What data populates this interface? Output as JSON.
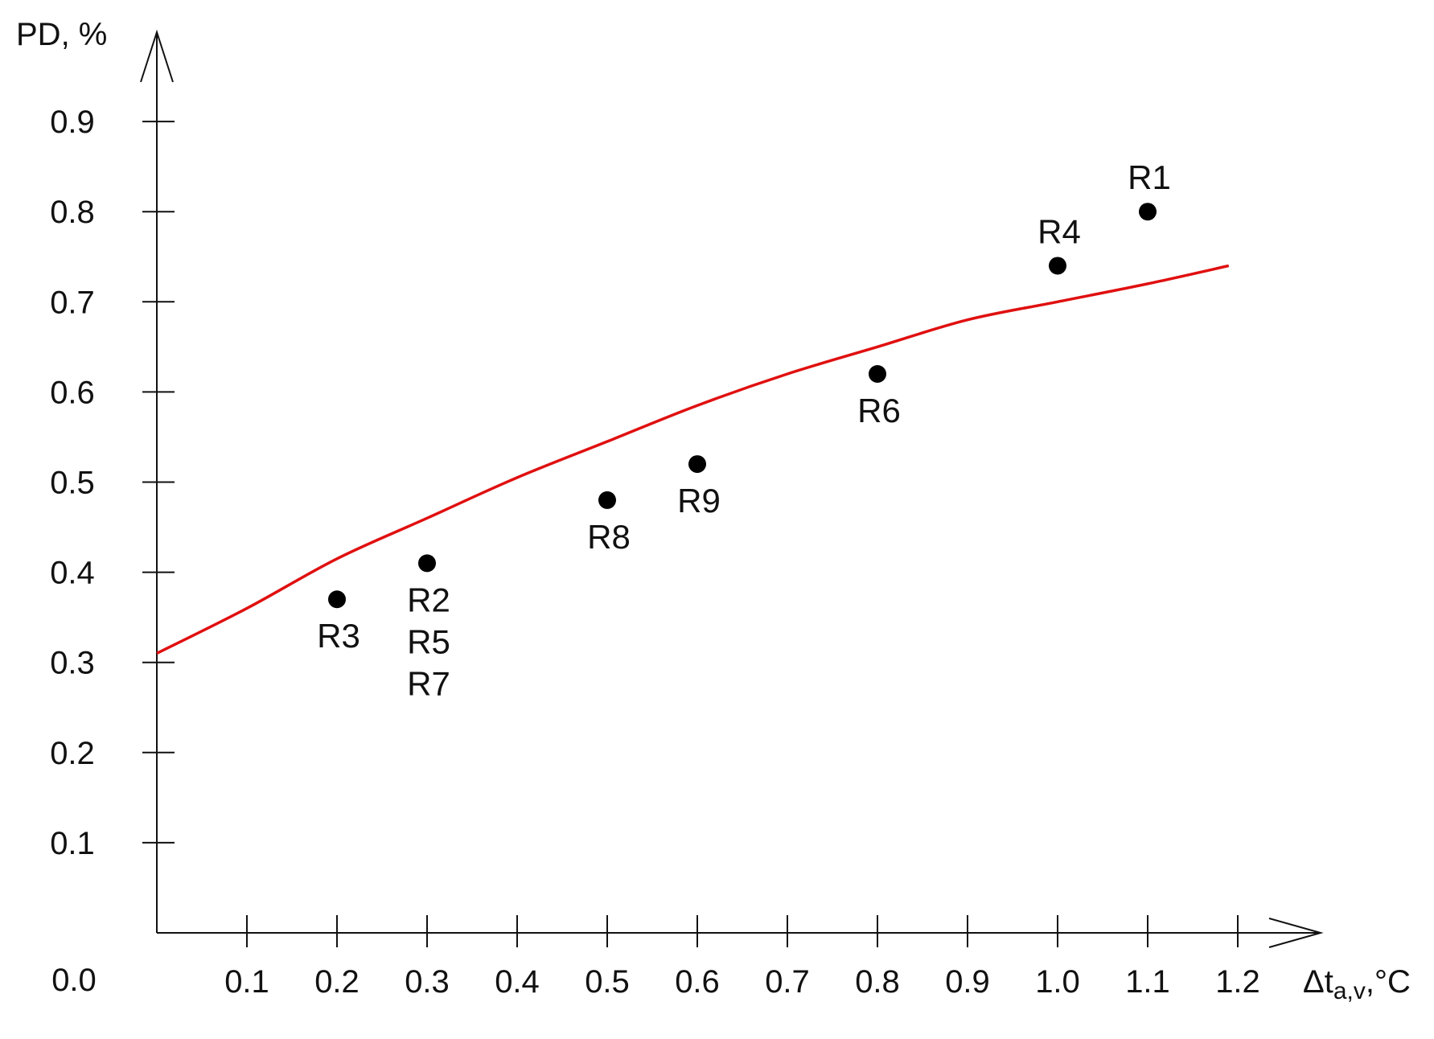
{
  "chart_data": {
    "type": "scatter",
    "title": "",
    "xlabel_main": "Δt",
    "xlabel_sub": "a,v",
    "xlabel_unit": ",°C",
    "ylabel": "PD, %",
    "origin_label": "0.0",
    "xlim": [
      0,
      1.3
    ],
    "ylim": [
      0,
      1.0
    ],
    "x_ticks": [
      0.1,
      0.2,
      0.3,
      0.4,
      0.5,
      0.6,
      0.7,
      0.8,
      0.9,
      1.0,
      1.1,
      1.2
    ],
    "x_tick_labels": [
      "0.1",
      "0.2",
      "0.3",
      "0.4",
      "0.5",
      "0.6",
      "0.7",
      "0.8",
      "0.9",
      "1.0",
      "1.1",
      "1.2"
    ],
    "y_ticks": [
      0.1,
      0.2,
      0.3,
      0.4,
      0.5,
      0.6,
      0.7,
      0.8,
      0.9
    ],
    "y_tick_labels": [
      "0.1",
      "0.2",
      "0.3",
      "0.4",
      "0.5",
      "0.6",
      "0.7",
      "0.8",
      "0.9"
    ],
    "points": [
      {
        "x": 1.1,
        "y": 0.8,
        "label_lines": [
          "R1"
        ],
        "label_pos": "above"
      },
      {
        "x": 1.0,
        "y": 0.74,
        "label_lines": [
          "R4"
        ],
        "label_pos": "above"
      },
      {
        "x": 0.8,
        "y": 0.62,
        "label_lines": [
          "R6"
        ],
        "label_pos": "below"
      },
      {
        "x": 0.6,
        "y": 0.52,
        "label_lines": [
          "R9"
        ],
        "label_pos": "below"
      },
      {
        "x": 0.5,
        "y": 0.48,
        "label_lines": [
          "R8"
        ],
        "label_pos": "below"
      },
      {
        "x": 0.3,
        "y": 0.41,
        "label_lines": [
          "R2",
          "R5",
          "R7"
        ],
        "label_pos": "below"
      },
      {
        "x": 0.2,
        "y": 0.37,
        "label_lines": [
          "R3"
        ],
        "label_pos": "below"
      }
    ],
    "fit_curve": {
      "x": [
        0.0,
        0.1,
        0.2,
        0.3,
        0.4,
        0.5,
        0.6,
        0.7,
        0.8,
        0.9,
        1.0,
        1.1,
        1.19
      ],
      "y": [
        0.31,
        0.36,
        0.415,
        0.46,
        0.505,
        0.545,
        0.585,
        0.62,
        0.65,
        0.68,
        0.7,
        0.72,
        0.74
      ]
    },
    "colors": {
      "curve": "#e01010",
      "points": "#000000",
      "axes": "#111111"
    }
  }
}
